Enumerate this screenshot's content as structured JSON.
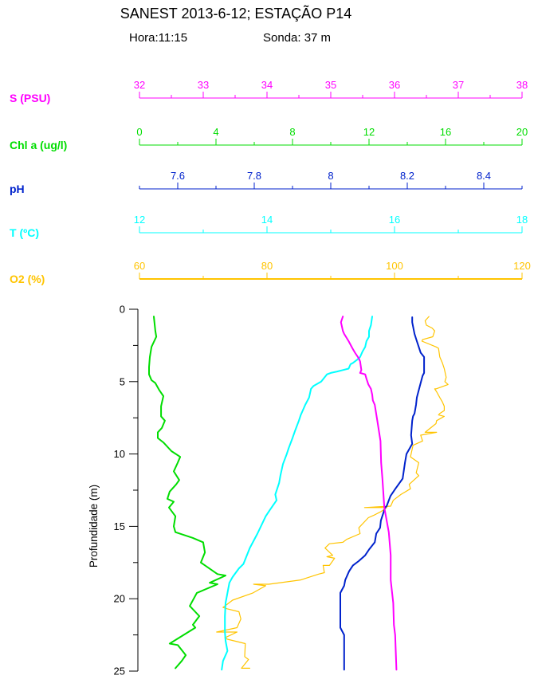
{
  "title": "SANEST 2013-6-12; ESTAÇÃO P14",
  "subtitle": {
    "hora": "Hora:11:15",
    "sonda": "Sonda: 37 m"
  },
  "chart_data": {
    "type": "line",
    "variant": "oceanographic-depth-profile",
    "grid": false,
    "legend": "none (axes are color-coded to curves)",
    "y_axis": {
      "label": "Profundidade (m)",
      "min": 0,
      "max": 25,
      "major_ticks": [
        0,
        5,
        10,
        15,
        20,
        25
      ],
      "minor_step": 2.5,
      "color": "#000000"
    },
    "x_axes": [
      {
        "id": "S",
        "label": "S (PSU)",
        "color": "#FF00FF",
        "min": 32,
        "max": 38,
        "major_ticks": [
          32,
          33,
          34,
          35,
          36,
          37,
          38
        ],
        "minor_step": 0.5
      },
      {
        "id": "Chl",
        "label": "Chl a (ug/l)",
        "color": "#00DD00",
        "min": 0,
        "max": 20,
        "major_ticks": [
          0,
          4,
          8,
          12,
          16,
          20
        ],
        "minor_step": 2
      },
      {
        "id": "pH",
        "label": "pH",
        "color": "#0022CC",
        "min": 7.5,
        "max": 8.5,
        "major_ticks": [
          7.6,
          7.8,
          8,
          8.2,
          8.4
        ],
        "minor_step": 0.1
      },
      {
        "id": "T",
        "label": "T (ºC)",
        "color": "#00FFFF",
        "min": 12,
        "max": 18,
        "major_ticks": [
          12,
          14,
          16,
          18
        ],
        "minor_step": 1
      },
      {
        "id": "O2",
        "label": "O2 (%)",
        "color": "#FFC400",
        "min": 60,
        "max": 120,
        "major_ticks": [
          60,
          80,
          100,
          120
        ],
        "minor_step": 10
      }
    ],
    "series": [
      {
        "axis": "S",
        "name": "S (PSU)",
        "points": [
          [
            35.19,
            0.5
          ],
          [
            35.16,
            0.9
          ],
          [
            35.19,
            1.5
          ],
          [
            35.21,
            1.7
          ],
          [
            35.28,
            2.2
          ],
          [
            35.34,
            2.7
          ],
          [
            35.38,
            3.0
          ],
          [
            35.44,
            3.4
          ],
          [
            35.46,
            3.6
          ],
          [
            35.48,
            4.2
          ],
          [
            35.46,
            4.4
          ],
          [
            35.54,
            4.5
          ],
          [
            35.56,
            4.8
          ],
          [
            35.59,
            5.2
          ],
          [
            35.63,
            5.5
          ],
          [
            35.65,
            5.9
          ],
          [
            35.66,
            6.3
          ],
          [
            35.69,
            6.6
          ],
          [
            35.73,
            7.7
          ],
          [
            35.78,
            9.1
          ],
          [
            35.79,
            10.6
          ],
          [
            35.81,
            11.7
          ],
          [
            35.84,
            13.7
          ],
          [
            35.91,
            15.4
          ],
          [
            35.94,
            17.0
          ],
          [
            35.94,
            18.7
          ],
          [
            35.98,
            20.3
          ],
          [
            35.99,
            21.8
          ],
          [
            36.01,
            22.5
          ],
          [
            36.03,
            24.9
          ]
        ]
      },
      {
        "axis": "Chl",
        "name": "Chl a (ug/l)",
        "points": [
          [
            0.75,
            0.5
          ],
          [
            0.83,
            1.5
          ],
          [
            0.88,
            1.9
          ],
          [
            0.63,
            2.6
          ],
          [
            0.54,
            3.3
          ],
          [
            0.5,
            4.0
          ],
          [
            0.5,
            4.5
          ],
          [
            0.63,
            4.9
          ],
          [
            0.83,
            5.1
          ],
          [
            1.04,
            5.6
          ],
          [
            1.25,
            6.0
          ],
          [
            1.13,
            6.7
          ],
          [
            1.13,
            7.4
          ],
          [
            1.33,
            7.7
          ],
          [
            1.17,
            8.2
          ],
          [
            0.96,
            8.5
          ],
          [
            0.96,
            8.9
          ],
          [
            1.25,
            9.2
          ],
          [
            1.67,
            9.8
          ],
          [
            2.13,
            10.2
          ],
          [
            2.0,
            10.6
          ],
          [
            1.79,
            11.2
          ],
          [
            2.08,
            11.8
          ],
          [
            1.92,
            12.1
          ],
          [
            1.58,
            12.6
          ],
          [
            1.46,
            13.1
          ],
          [
            1.79,
            13.3
          ],
          [
            1.54,
            13.7
          ],
          [
            1.88,
            14.3
          ],
          [
            1.79,
            15.0
          ],
          [
            1.88,
            15.4
          ],
          [
            2.79,
            15.8
          ],
          [
            3.33,
            16.1
          ],
          [
            3.42,
            16.8
          ],
          [
            3.21,
            17.5
          ],
          [
            4.08,
            18.3
          ],
          [
            4.5,
            18.4
          ],
          [
            3.67,
            18.9
          ],
          [
            4.08,
            19.0
          ],
          [
            3.0,
            19.6
          ],
          [
            2.63,
            20.5
          ],
          [
            3.13,
            21.2
          ],
          [
            2.79,
            21.8
          ],
          [
            2.92,
            22.0
          ],
          [
            1.58,
            23.1
          ],
          [
            2.0,
            23.2
          ],
          [
            2.42,
            23.9
          ],
          [
            2.21,
            24.3
          ],
          [
            1.88,
            24.8
          ]
        ]
      },
      {
        "axis": "pH",
        "name": "pH",
        "points": [
          [
            8.213,
            0.55
          ],
          [
            8.213,
            0.9
          ],
          [
            8.219,
            1.7
          ],
          [
            8.225,
            2.2
          ],
          [
            8.235,
            3.0
          ],
          [
            8.244,
            3.3
          ],
          [
            8.244,
            4.4
          ],
          [
            8.24,
            4.6
          ],
          [
            8.233,
            5.3
          ],
          [
            8.229,
            5.7
          ],
          [
            8.225,
            6.1
          ],
          [
            8.223,
            6.6
          ],
          [
            8.219,
            7.2
          ],
          [
            8.215,
            7.4
          ],
          [
            8.213,
            7.7
          ],
          [
            8.21,
            8.7
          ],
          [
            8.213,
            9.3
          ],
          [
            8.198,
            10.0
          ],
          [
            8.194,
            10.6
          ],
          [
            8.188,
            11.7
          ],
          [
            8.169,
            12.4
          ],
          [
            8.156,
            12.9
          ],
          [
            8.146,
            13.6
          ],
          [
            8.142,
            13.7
          ],
          [
            8.131,
            14.6
          ],
          [
            8.129,
            15.1
          ],
          [
            8.119,
            15.5
          ],
          [
            8.115,
            16.1
          ],
          [
            8.1,
            16.6
          ],
          [
            8.09,
            17.0
          ],
          [
            8.073,
            17.4
          ],
          [
            8.058,
            17.7
          ],
          [
            8.048,
            18.1
          ],
          [
            8.038,
            18.7
          ],
          [
            8.035,
            19.1
          ],
          [
            8.025,
            19.6
          ],
          [
            8.025,
            22.0
          ],
          [
            8.035,
            22.5
          ],
          [
            8.035,
            24.9
          ]
        ]
      },
      {
        "axis": "T",
        "name": "T (ºC)",
        "points": [
          [
            15.65,
            0.5
          ],
          [
            15.63,
            1.1
          ],
          [
            15.6,
            1.5
          ],
          [
            15.6,
            1.9
          ],
          [
            15.56,
            2.2
          ],
          [
            15.54,
            2.6
          ],
          [
            15.5,
            2.9
          ],
          [
            15.46,
            3.3
          ],
          [
            15.41,
            3.5
          ],
          [
            15.35,
            3.7
          ],
          [
            15.31,
            3.8
          ],
          [
            15.28,
            4.1
          ],
          [
            15.19,
            4.2
          ],
          [
            15.1,
            4.3
          ],
          [
            15.0,
            4.4
          ],
          [
            14.94,
            4.5
          ],
          [
            14.85,
            5.0
          ],
          [
            14.73,
            5.3
          ],
          [
            14.69,
            5.5
          ],
          [
            14.66,
            6.1
          ],
          [
            14.6,
            6.6
          ],
          [
            14.53,
            7.3
          ],
          [
            14.5,
            7.7
          ],
          [
            14.44,
            8.4
          ],
          [
            14.4,
            8.9
          ],
          [
            14.34,
            9.6
          ],
          [
            14.31,
            10.0
          ],
          [
            14.25,
            10.7
          ],
          [
            14.21,
            11.5
          ],
          [
            14.19,
            12.0
          ],
          [
            14.13,
            12.8
          ],
          [
            14.15,
            13.2
          ],
          [
            14.04,
            13.9
          ],
          [
            13.98,
            14.3
          ],
          [
            13.85,
            15.5
          ],
          [
            13.73,
            16.5
          ],
          [
            13.63,
            17.6
          ],
          [
            13.56,
            17.9
          ],
          [
            13.46,
            18.5
          ],
          [
            13.41,
            18.9
          ],
          [
            13.38,
            19.6
          ],
          [
            13.35,
            20.3
          ],
          [
            13.34,
            21.2
          ],
          [
            13.34,
            22.3
          ],
          [
            13.35,
            22.9
          ],
          [
            13.38,
            23.6
          ],
          [
            13.31,
            24.3
          ],
          [
            13.29,
            24.9
          ]
        ]
      },
      {
        "axis": "O2",
        "name": "O2 (%)",
        "points": [
          [
            105.4,
            0.5
          ],
          [
            104.8,
            0.8
          ],
          [
            105.0,
            1.1
          ],
          [
            105.9,
            1.3
          ],
          [
            106.3,
            1.5
          ],
          [
            106.0,
            1.9
          ],
          [
            104.4,
            2.1
          ],
          [
            104.3,
            2.2
          ],
          [
            106.5,
            2.6
          ],
          [
            106.9,
            2.7
          ],
          [
            107.1,
            3.3
          ],
          [
            107.5,
            3.7
          ],
          [
            107.8,
            4.1
          ],
          [
            108.1,
            4.7
          ],
          [
            107.9,
            5.0
          ],
          [
            108.4,
            5.2
          ],
          [
            106.5,
            5.5
          ],
          [
            106.3,
            5.5
          ],
          [
            106.6,
            5.7
          ],
          [
            107.1,
            6.1
          ],
          [
            107.5,
            6.4
          ],
          [
            107.8,
            6.7
          ],
          [
            107.8,
            7.0
          ],
          [
            107.1,
            7.2
          ],
          [
            106.9,
            7.3
          ],
          [
            107.8,
            7.4
          ],
          [
            106.6,
            7.7
          ],
          [
            106.5,
            7.9
          ],
          [
            104.8,
            8.5
          ],
          [
            106.6,
            8.5
          ],
          [
            104.1,
            8.7
          ],
          [
            104.4,
            9.1
          ],
          [
            102.9,
            9.4
          ],
          [
            102.5,
            10.2
          ],
          [
            103.8,
            10.6
          ],
          [
            103.4,
            11.3
          ],
          [
            103.8,
            11.5
          ],
          [
            102.3,
            12.1
          ],
          [
            102.5,
            12.4
          ],
          [
            101.0,
            12.8
          ],
          [
            99.8,
            13.2
          ],
          [
            99.4,
            13.6
          ],
          [
            95.3,
            13.7
          ],
          [
            98.8,
            13.7
          ],
          [
            97.8,
            14.0
          ],
          [
            96.9,
            14.2
          ],
          [
            95.9,
            14.4
          ],
          [
            94.4,
            15.1
          ],
          [
            94.6,
            15.5
          ],
          [
            92.5,
            15.9
          ],
          [
            91.9,
            16.1
          ],
          [
            89.8,
            16.2
          ],
          [
            89.1,
            16.5
          ],
          [
            90.3,
            17.0
          ],
          [
            89.4,
            17.1
          ],
          [
            90.6,
            17.2
          ],
          [
            89.8,
            17.7
          ],
          [
            88.8,
            17.7
          ],
          [
            89.0,
            18.2
          ],
          [
            88.1,
            18.3
          ],
          [
            85.3,
            18.7
          ],
          [
            80.3,
            19.0
          ],
          [
            77.9,
            19.0
          ],
          [
            79.8,
            19.1
          ],
          [
            77.8,
            19.6
          ],
          [
            74.6,
            20.1
          ],
          [
            73.1,
            20.6
          ],
          [
            73.8,
            20.7
          ],
          [
            75.6,
            20.9
          ],
          [
            75.9,
            21.4
          ],
          [
            75.3,
            22.0
          ],
          [
            72.1,
            22.3
          ],
          [
            75.3,
            22.3
          ],
          [
            73.4,
            22.7
          ],
          [
            73.8,
            22.8
          ],
          [
            76.6,
            23.1
          ],
          [
            76.5,
            24.0
          ],
          [
            77.1,
            24.2
          ],
          [
            76.0,
            24.8
          ],
          [
            77.3,
            24.8
          ]
        ]
      }
    ]
  }
}
